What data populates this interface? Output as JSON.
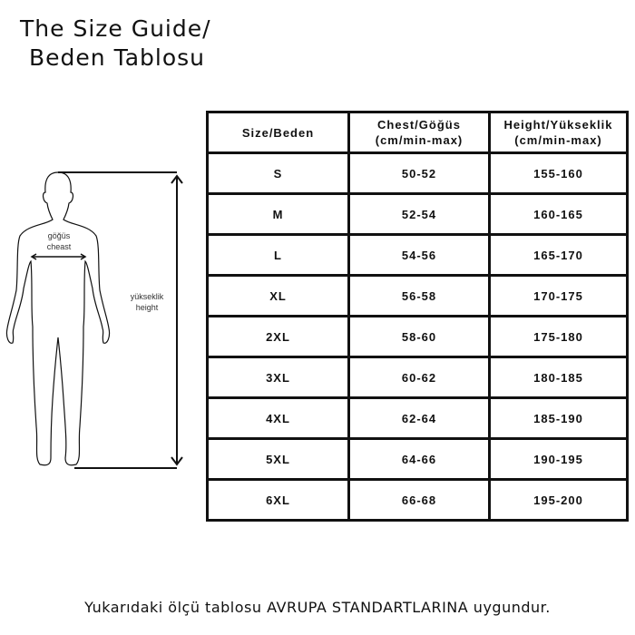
{
  "title_line1": "The Size Guide/",
  "title_line2": "Beden Tablosu",
  "figure": {
    "chest_label_tr": "göğüs",
    "chest_label_en": "cheast",
    "height_label_tr": "yükseklik",
    "height_label_en": "height"
  },
  "table": {
    "headers": [
      [
        "Size/Beden",
        ""
      ],
      [
        "Chest/Göğüs",
        "(cm/min-max)"
      ],
      [
        "Height/Yükseklik",
        "(cm/min-max)"
      ]
    ],
    "rows": [
      [
        "S",
        "50-52",
        "155-160"
      ],
      [
        "M",
        "52-54",
        "160-165"
      ],
      [
        "L",
        "54-56",
        "165-170"
      ],
      [
        "XL",
        "56-58",
        "170-175"
      ],
      [
        "2XL",
        "58-60",
        "175-180"
      ],
      [
        "3XL",
        "60-62",
        "180-185"
      ],
      [
        "4XL",
        "62-64",
        "185-190"
      ],
      [
        "5XL",
        "64-66",
        "190-195"
      ],
      [
        "6XL",
        "66-68",
        "195-200"
      ]
    ]
  },
  "footer": "Yukarıdaki ölçü tablosu AVRUPA STANDARTLARINA uygundur."
}
